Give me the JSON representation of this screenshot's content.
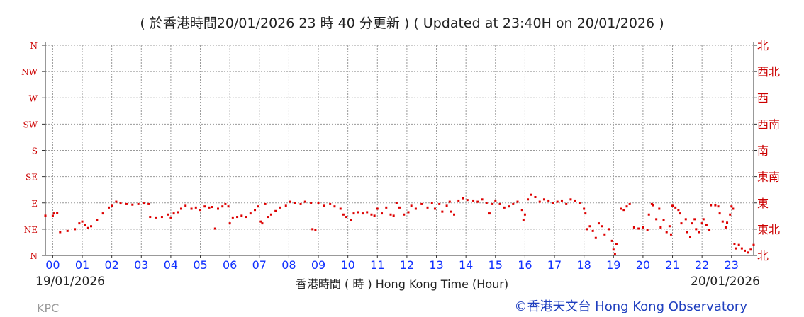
{
  "header": {
    "title": "( 於香港時間20/01/2026 23 時 40 分更新 ) ( Updated at 23:40H on 20/01/2026 )"
  },
  "footer": {
    "date_start": "19/01/2026",
    "date_end": "20/01/2026",
    "station": "KPC",
    "credit": "©香港天文台 Hong Kong Observatory"
  },
  "colors": {
    "series": "#dd0000",
    "hour_labels": "#1030ff",
    "direction_labels": "#cc0000",
    "grid": "#999999"
  },
  "chart_data": {
    "type": "scatter",
    "xlabel": "香港時間 ( 時 ) Hong Kong Time (Hour)",
    "x_ticks": [
      "00",
      "01",
      "02",
      "03",
      "04",
      "05",
      "06",
      "07",
      "08",
      "09",
      "10",
      "11",
      "12",
      "13",
      "14",
      "15",
      "16",
      "17",
      "18",
      "19",
      "20",
      "21",
      "22",
      "23"
    ],
    "xlim": [
      -0.25,
      23.75
    ],
    "ylim": [
      0,
      360
    ],
    "y_ticks_left": [
      "N",
      "NE",
      "E",
      "SE",
      "S",
      "SW",
      "W",
      "NW",
      "N"
    ],
    "y_ticks_right": [
      "北",
      "東北",
      "東",
      "東南",
      "南",
      "西南",
      "西",
      "西北",
      "北"
    ],
    "grid": true,
    "series": [
      {
        "x_unit": "hour",
        "y_unit": "degrees",
        "points": [
          [
            -0.25,
            68
          ],
          [
            0.0,
            68
          ],
          [
            0.05,
            72
          ],
          [
            0.15,
            73
          ],
          [
            0.25,
            40
          ],
          [
            0.5,
            42
          ],
          [
            0.75,
            45
          ],
          [
            0.9,
            55
          ],
          [
            1.0,
            58
          ],
          [
            1.1,
            52
          ],
          [
            1.2,
            47
          ],
          [
            1.3,
            50
          ],
          [
            1.5,
            60
          ],
          [
            1.7,
            72
          ],
          [
            1.9,
            82
          ],
          [
            2.0,
            85
          ],
          [
            2.15,
            92
          ],
          [
            2.3,
            89
          ],
          [
            2.5,
            88
          ],
          [
            2.7,
            87
          ],
          [
            2.9,
            88
          ],
          [
            3.1,
            89
          ],
          [
            3.25,
            88
          ],
          [
            3.3,
            66
          ],
          [
            3.5,
            65
          ],
          [
            3.7,
            66
          ],
          [
            3.9,
            70
          ],
          [
            4.0,
            65
          ],
          [
            4.1,
            72
          ],
          [
            4.25,
            74
          ],
          [
            4.35,
            80
          ],
          [
            4.5,
            85
          ],
          [
            4.7,
            80
          ],
          [
            4.85,
            82
          ],
          [
            5.0,
            78
          ],
          [
            5.15,
            84
          ],
          [
            5.3,
            82
          ],
          [
            5.4,
            83
          ],
          [
            5.5,
            46
          ],
          [
            5.6,
            80
          ],
          [
            5.75,
            84
          ],
          [
            5.85,
            88
          ],
          [
            5.95,
            84
          ],
          [
            6.0,
            55
          ],
          [
            6.1,
            65
          ],
          [
            6.25,
            66
          ],
          [
            6.4,
            68
          ],
          [
            6.55,
            66
          ],
          [
            6.7,
            72
          ],
          [
            6.85,
            78
          ],
          [
            6.95,
            84
          ],
          [
            7.05,
            58
          ],
          [
            7.1,
            55
          ],
          [
            7.2,
            88
          ],
          [
            7.3,
            66
          ],
          [
            7.4,
            70
          ],
          [
            7.55,
            76
          ],
          [
            7.7,
            82
          ],
          [
            7.9,
            85
          ],
          [
            8.05,
            92
          ],
          [
            8.2,
            90
          ],
          [
            8.4,
            88
          ],
          [
            8.55,
            92
          ],
          [
            8.75,
            90
          ],
          [
            8.8,
            45
          ],
          [
            8.9,
            44
          ],
          [
            9.0,
            90
          ],
          [
            9.2,
            85
          ],
          [
            9.4,
            88
          ],
          [
            9.55,
            84
          ],
          [
            9.75,
            80
          ],
          [
            9.85,
            70
          ],
          [
            9.95,
            66
          ],
          [
            10.1,
            60
          ],
          [
            10.2,
            72
          ],
          [
            10.35,
            74
          ],
          [
            10.5,
            72
          ],
          [
            10.65,
            74
          ],
          [
            10.8,
            70
          ],
          [
            10.9,
            68
          ],
          [
            11.0,
            80
          ],
          [
            11.15,
            72
          ],
          [
            11.3,
            82
          ],
          [
            11.45,
            70
          ],
          [
            11.55,
            68
          ],
          [
            11.65,
            90
          ],
          [
            11.75,
            82
          ],
          [
            11.9,
            70
          ],
          [
            12.05,
            74
          ],
          [
            12.15,
            85
          ],
          [
            12.3,
            80
          ],
          [
            12.5,
            88
          ],
          [
            12.7,
            82
          ],
          [
            12.85,
            90
          ],
          [
            12.95,
            80
          ],
          [
            13.1,
            88
          ],
          [
            13.2,
            75
          ],
          [
            13.35,
            85
          ],
          [
            13.45,
            92
          ],
          [
            13.5,
            75
          ],
          [
            13.6,
            70
          ],
          [
            13.75,
            94
          ],
          [
            13.9,
            98
          ],
          [
            14.05,
            95
          ],
          [
            14.25,
            94
          ],
          [
            14.4,
            92
          ],
          [
            14.55,
            96
          ],
          [
            14.7,
            90
          ],
          [
            14.8,
            72
          ],
          [
            14.9,
            88
          ],
          [
            15.0,
            94
          ],
          [
            15.15,
            88
          ],
          [
            15.3,
            82
          ],
          [
            15.45,
            84
          ],
          [
            15.6,
            88
          ],
          [
            15.75,
            92
          ],
          [
            15.9,
            78
          ],
          [
            15.95,
            60
          ],
          [
            16.0,
            70
          ],
          [
            16.1,
            96
          ],
          [
            16.2,
            104
          ],
          [
            16.35,
            100
          ],
          [
            16.5,
            92
          ],
          [
            16.65,
            96
          ],
          [
            16.8,
            94
          ],
          [
            16.95,
            90
          ],
          [
            17.1,
            92
          ],
          [
            17.25,
            94
          ],
          [
            17.4,
            88
          ],
          [
            17.55,
            96
          ],
          [
            17.7,
            94
          ],
          [
            17.85,
            90
          ],
          [
            18.0,
            80
          ],
          [
            18.05,
            72
          ],
          [
            18.1,
            45
          ],
          [
            18.2,
            50
          ],
          [
            18.3,
            42
          ],
          [
            18.4,
            30
          ],
          [
            18.5,
            55
          ],
          [
            18.6,
            50
          ],
          [
            18.7,
            36
          ],
          [
            18.85,
            45
          ],
          [
            18.95,
            25
          ],
          [
            19.0,
            10
          ],
          [
            19.05,
            2
          ],
          [
            19.1,
            20
          ],
          [
            19.25,
            80
          ],
          [
            19.35,
            78
          ],
          [
            19.45,
            84
          ],
          [
            19.55,
            88
          ],
          [
            19.7,
            48
          ],
          [
            19.85,
            46
          ],
          [
            20.0,
            48
          ],
          [
            20.15,
            44
          ],
          [
            20.2,
            70
          ],
          [
            20.3,
            88
          ],
          [
            20.35,
            86
          ],
          [
            20.45,
            62
          ],
          [
            20.55,
            80
          ],
          [
            20.6,
            48
          ],
          [
            20.7,
            60
          ],
          [
            20.8,
            40
          ],
          [
            20.9,
            50
          ],
          [
            20.95,
            36
          ],
          [
            21.0,
            85
          ],
          [
            21.1,
            82
          ],
          [
            21.2,
            78
          ],
          [
            21.25,
            72
          ],
          [
            21.3,
            55
          ],
          [
            21.45,
            62
          ],
          [
            21.5,
            40
          ],
          [
            21.6,
            32
          ],
          [
            21.65,
            55
          ],
          [
            21.75,
            62
          ],
          [
            21.8,
            45
          ],
          [
            21.9,
            40
          ],
          [
            22.0,
            55
          ],
          [
            22.05,
            62
          ],
          [
            22.15,
            52
          ],
          [
            22.25,
            44
          ],
          [
            22.3,
            86
          ],
          [
            22.45,
            86
          ],
          [
            22.55,
            84
          ],
          [
            22.6,
            72
          ],
          [
            22.7,
            58
          ],
          [
            22.8,
            48
          ],
          [
            22.85,
            56
          ],
          [
            22.95,
            70
          ],
          [
            23.0,
            84
          ],
          [
            23.05,
            80
          ],
          [
            23.1,
            20
          ],
          [
            23.15,
            12
          ],
          [
            23.25,
            18
          ],
          [
            23.35,
            12
          ],
          [
            23.45,
            8
          ],
          [
            23.55,
            5
          ],
          [
            23.65,
            10
          ],
          [
            23.75,
            18
          ]
        ]
      }
    ]
  }
}
